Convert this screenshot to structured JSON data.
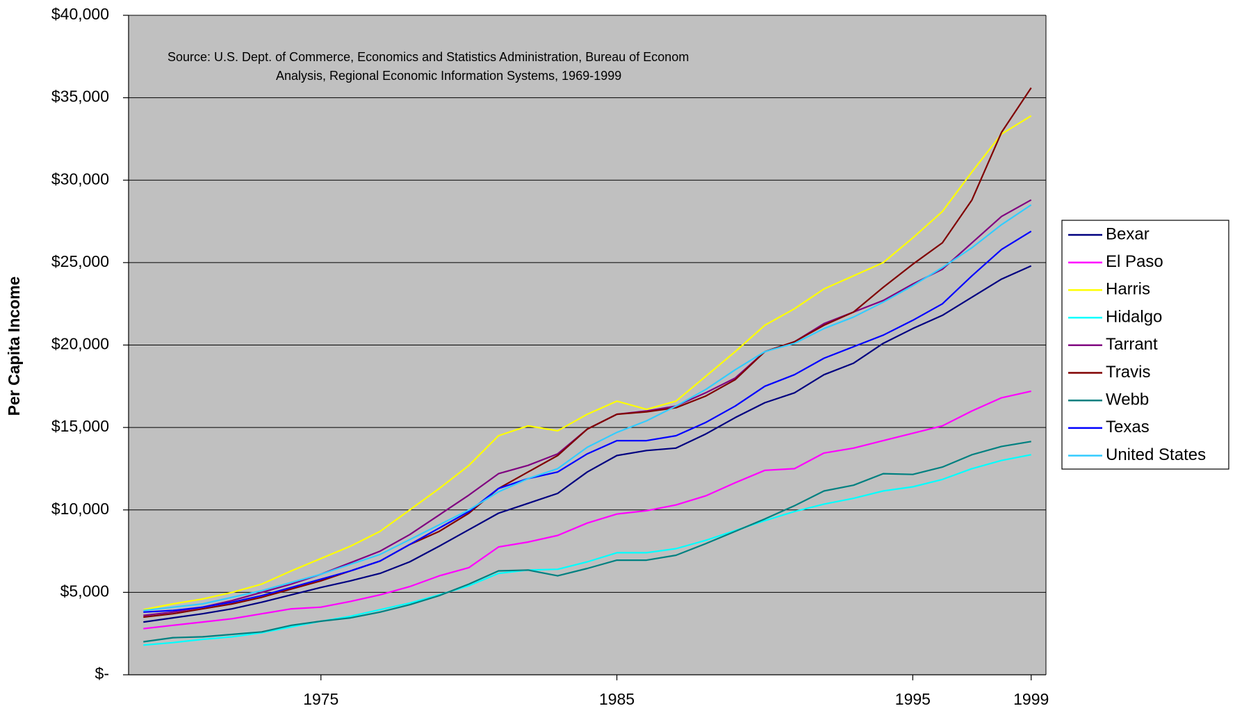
{
  "chart_data": {
    "type": "line",
    "y_label": "Per Capita Income",
    "annotations": [
      "Source: U.S. Dept. of Commerce, Economics and Statistics Administration, Bureau of Econom",
      "Analysis, Regional Economic Information Systems, 1969-1999"
    ],
    "x": [
      1969,
      1970,
      1971,
      1972,
      1973,
      1974,
      1975,
      1976,
      1977,
      1978,
      1979,
      1980,
      1981,
      1982,
      1983,
      1984,
      1985,
      1986,
      1987,
      1988,
      1989,
      1990,
      1991,
      1992,
      1993,
      1994,
      1995,
      1996,
      1997,
      1998,
      1999
    ],
    "xlim": [
      1968.5,
      1999.5
    ],
    "xticks": [
      1975,
      1985,
      1995,
      1999
    ],
    "ylim": [
      0,
      40000
    ],
    "yticks": [
      {
        "value": 0,
        "label": "$-"
      },
      {
        "value": 5000,
        "label": "$5,000"
      },
      {
        "value": 10000,
        "label": "$10,000"
      },
      {
        "value": 15000,
        "label": "$15,000"
      },
      {
        "value": 20000,
        "label": "$20,000"
      },
      {
        "value": 25000,
        "label": "$25,000"
      },
      {
        "value": 30000,
        "label": "$30,000"
      },
      {
        "value": 35000,
        "label": "$35,000"
      },
      {
        "value": 40000,
        "label": "$40,000"
      }
    ],
    "grid": true,
    "legend": "right",
    "series": [
      {
        "name": "Bexar",
        "color": "#000080",
        "values": [
          3200,
          3450,
          3700,
          4000,
          4400,
          4850,
          5300,
          5700,
          6150,
          6850,
          7800,
          8800,
          9800,
          10400,
          11000,
          12300,
          13300,
          13600,
          13750,
          14600,
          15600,
          16500,
          17100,
          18200,
          18900,
          20100,
          21000,
          21800,
          22900,
          24000,
          24800
        ]
      },
      {
        "name": "El Paso",
        "color": "#ff00ff",
        "values": [
          2800,
          3000,
          3200,
          3400,
          3700,
          4000,
          4100,
          4450,
          4850,
          5350,
          6000,
          6500,
          7750,
          8050,
          8450,
          9200,
          9750,
          9950,
          10300,
          10850,
          11650,
          12400,
          12500,
          13450,
          13750,
          14200,
          14650,
          15100,
          16000,
          16800,
          17200
        ]
      },
      {
        "name": "Harris",
        "color": "#ffff00",
        "values": [
          3950,
          4300,
          4600,
          5000,
          5500,
          6300,
          7050,
          7800,
          8700,
          10000,
          11300,
          12700,
          14500,
          15100,
          14800,
          15800,
          16600,
          16100,
          16600,
          18100,
          19600,
          21200,
          22200,
          23400,
          24200,
          25000,
          26500,
          28100,
          30500,
          32800,
          33900
        ]
      },
      {
        "name": "Hidalgo",
        "color": "#00ffff",
        "values": [
          1800,
          1950,
          2150,
          2300,
          2550,
          2900,
          3250,
          3550,
          3950,
          4350,
          4850,
          5400,
          6150,
          6350,
          6400,
          6850,
          7400,
          7400,
          7650,
          8150,
          8750,
          9350,
          9900,
          10350,
          10700,
          11150,
          11400,
          11850,
          12500,
          13000,
          13350
        ]
      },
      {
        "name": "Tarrant",
        "color": "#800080",
        "values": [
          3600,
          3800,
          4100,
          4500,
          5000,
          5500,
          6100,
          6800,
          7500,
          8500,
          9700,
          10900,
          12200,
          12700,
          13400,
          14900,
          15800,
          16000,
          16300,
          17100,
          18000,
          19600,
          20200,
          21300,
          22000,
          22700,
          23700,
          24600,
          26200,
          27800,
          28800
        ]
      },
      {
        "name": "Travis",
        "color": "#800000",
        "values": [
          3500,
          3700,
          4000,
          4300,
          4700,
          5200,
          5700,
          6300,
          6900,
          7900,
          8700,
          9800,
          11300,
          12300,
          13300,
          14900,
          15800,
          15950,
          16200,
          16900,
          17900,
          19600,
          20200,
          21200,
          22000,
          23500,
          24900,
          26200,
          28800,
          32900,
          35600
        ]
      },
      {
        "name": "Webb",
        "color": "#008080",
        "values": [
          2000,
          2250,
          2300,
          2450,
          2600,
          3000,
          3250,
          3450,
          3800,
          4250,
          4800,
          5500,
          6300,
          6350,
          6000,
          6450,
          6950,
          6950,
          7250,
          7950,
          8700,
          9450,
          10250,
          11150,
          11500,
          12200,
          12150,
          12600,
          13350,
          13850,
          14150
        ]
      },
      {
        "name": "Texas",
        "color": "#0000ff",
        "values": [
          3800,
          3900,
          4100,
          4400,
          4800,
          5300,
          5800,
          6300,
          6900,
          7900,
          8900,
          9900,
          11300,
          11900,
          12300,
          13400,
          14200,
          14200,
          14500,
          15300,
          16300,
          17500,
          18200,
          19200,
          19900,
          20600,
          21500,
          22500,
          24200,
          25800,
          26900
        ]
      },
      {
        "name": "United States",
        "color": "#33ccff",
        "values": [
          3900,
          4100,
          4300,
          4700,
          5100,
          5600,
          6100,
          6700,
          7300,
          8200,
          9100,
          10000,
          11100,
          11900,
          12500,
          13800,
          14700,
          15400,
          16300,
          17300,
          18500,
          19600,
          20100,
          21000,
          21700,
          22600,
          23600,
          24700,
          25900,
          27300,
          28500
        ]
      }
    ]
  }
}
